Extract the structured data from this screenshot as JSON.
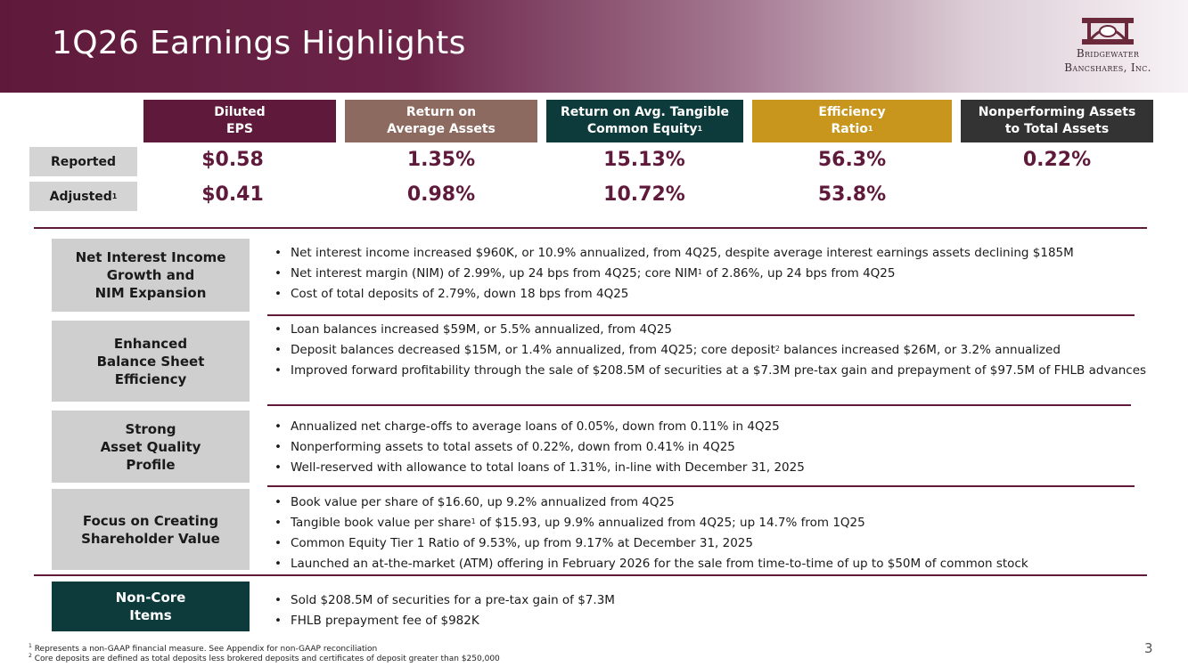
{
  "header": {
    "title": "1Q26 Earnings Highlights",
    "logo_line1": "Bridgewater",
    "logo_line2": "Bancshares, Inc."
  },
  "colors": {
    "maroon": "#5f1a3b",
    "taupe": "#8c6a60",
    "teal": "#0d3b3c",
    "gold": "#c8961c",
    "charcoal": "#333333"
  },
  "metrics": {
    "columns": [
      {
        "line1": "Diluted",
        "line2": "EPS",
        "sup": "",
        "color": "#5f1a3b"
      },
      {
        "line1": "Return on",
        "line2": "Average Assets",
        "sup": "",
        "color": "#8c6a60"
      },
      {
        "line1": "Return on Avg. Tangible",
        "line2": "Common Equity",
        "sup": "1",
        "color": "#0d3b3c"
      },
      {
        "line1": "Efficiency",
        "line2": "Ratio",
        "sup": "1",
        "color": "#c8961c"
      },
      {
        "line1": "Nonperforming Assets",
        "line2": "to Total Assets",
        "sup": "",
        "color": "#333333"
      }
    ],
    "reported_label": "Reported",
    "adjusted_label": "Adjusted",
    "adjusted_sup": "1",
    "reported": [
      "$0.58",
      "1.35%",
      "15.13%",
      "56.3%",
      "0.22%"
    ],
    "adjusted": [
      "$0.41",
      "0.98%",
      "10.72%",
      "53.8%",
      ""
    ]
  },
  "sections": [
    {
      "label": "Net Interest Income\nGrowth and\nNIM Expansion",
      "bullets": [
        {
          "parts": [
            "Net interest income increased $960K, or 10.9% annualized, from 4Q25, despite average interest earnings assets declining $185M"
          ]
        },
        {
          "parts": [
            "Net interest margin (NIM) of 2.99%, up 24 bps from 4Q25; core NIM",
            "1",
            " of 2.86%, up 24 bps from 4Q25"
          ]
        },
        {
          "parts": [
            "Cost of total deposits of 2.79%, down 18 bps from 4Q25"
          ]
        }
      ]
    },
    {
      "label": "Enhanced\nBalance Sheet\nEfficiency",
      "bullets": [
        {
          "parts": [
            "Loan balances increased $59M, or 5.5% annualized, from 4Q25"
          ]
        },
        {
          "parts": [
            "Deposit balances decreased $15M, or 1.4% annualized, from 4Q25; core deposit",
            "2",
            " balances increased $26M, or 3.2% annualized"
          ]
        },
        {
          "parts": [
            "Improved forward profitability through the sale of $208.5M of securities at a $7.3M pre-tax gain and prepayment of $97.5M of FHLB advances"
          ]
        }
      ]
    },
    {
      "label": "Strong\nAsset Quality\nProfile",
      "bullets": [
        {
          "parts": [
            "Annualized net charge-offs to average loans of 0.05%, down from 0.11% in 4Q25"
          ]
        },
        {
          "parts": [
            "Nonperforming assets to total assets of 0.22%, down from 0.41% in 4Q25"
          ]
        },
        {
          "parts": [
            "Well-reserved with allowance to total loans of 1.31%, in-line with December 31, 2025"
          ]
        }
      ]
    },
    {
      "label": "Focus on Creating\nShareholder Value",
      "bullets": [
        {
          "parts": [
            "Book value per share of $16.60, up 9.2% annualized from 4Q25"
          ]
        },
        {
          "parts": [
            "Tangible book value per share",
            "1",
            " of $15.93, up 9.9% annualized from 4Q25; up 14.7% from 1Q25"
          ]
        },
        {
          "parts": [
            "Common Equity Tier 1 Ratio of 9.53%, up from 9.17% at December 31, 2025"
          ]
        },
        {
          "parts": [
            "Launched an at-the-market (ATM) offering in February 2026 for the sale from time-to-time of up to $50M of common stock"
          ]
        }
      ]
    },
    {
      "label": "Non-Core\nItems",
      "bullets": [
        {
          "parts": [
            "Sold $208.5M of securities for a pre-tax gain of $7.3M"
          ]
        },
        {
          "parts": [
            "FHLB prepayment fee of $982K"
          ]
        }
      ]
    }
  ],
  "footnotes": {
    "note1_num": "1",
    "note1": " Represents a non-GAAP financial measure. See Appendix for non-GAAP reconciliation",
    "note2_num": "2",
    "note2": " Core deposits are defined as total deposits less brokered deposits and certificates of deposit greater than $250,000"
  },
  "page_number": "3"
}
